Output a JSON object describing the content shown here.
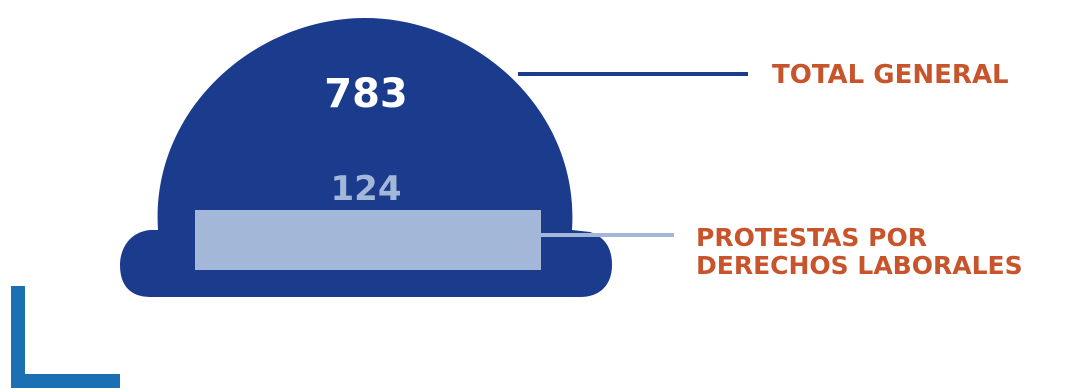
{
  "total": {
    "value": "783",
    "label": "TOTAL GENERAL"
  },
  "labor": {
    "value": "124",
    "label_line1": "PROTESTAS POR",
    "label_line2": "DERECHOS LABORALES"
  },
  "colors": {
    "helmet": "#1b3b8d",
    "band": "#a3b8d8",
    "label": "#c8542c",
    "corner_bracket": "#1b6fb3",
    "total_number": "#ffffff"
  },
  "icons": {
    "main_shape": "hard-hat-icon"
  }
}
